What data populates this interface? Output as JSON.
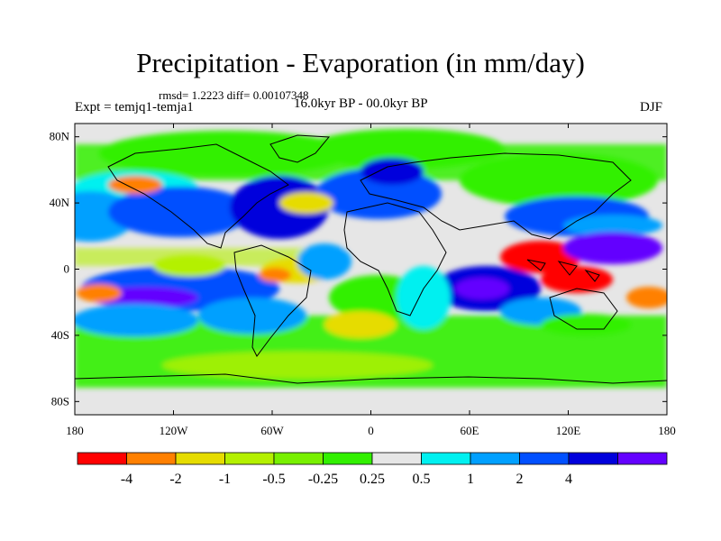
{
  "title": "Precipitation - Evaporation (in mm/day)",
  "stats": "rmsd= 1.2223 diff= 0.00107348",
  "experiment": "Expt = temjq1-temja1",
  "period": "16.0kyr BP - 00.0kyr BP",
  "season": "DJF",
  "lat_ticks": [
    {
      "label": "80N",
      "lat": 80
    },
    {
      "label": "40N",
      "lat": 40
    },
    {
      "label": "0",
      "lat": 0
    },
    {
      "label": "40S",
      "lat": -40
    },
    {
      "label": "80S",
      "lat": -80
    }
  ],
  "lon_ticks": [
    {
      "label": "180",
      "lon": -180
    },
    {
      "label": "120W",
      "lon": -120
    },
    {
      "label": "60W",
      "lon": -60
    },
    {
      "label": "0",
      "lon": 0
    },
    {
      "label": "60E",
      "lon": 60
    },
    {
      "label": "120E",
      "lon": 120
    },
    {
      "label": "180",
      "lon": 180
    }
  ],
  "colorbar": {
    "colors": [
      "#ff0000",
      "#ff8000",
      "#e6dc00",
      "#b4f000",
      "#78f000",
      "#32f000",
      "#e6e6e6",
      "#00f0f0",
      "#00a0ff",
      "#0050ff",
      "#0000dc",
      "#6400ff"
    ],
    "labels": [
      {
        "text": "-4",
        "boundary": 1
      },
      {
        "text": "-2",
        "boundary": 2
      },
      {
        "text": "-1",
        "boundary": 3
      },
      {
        "text": "-0.5",
        "boundary": 4
      },
      {
        "text": "-0.25",
        "boundary": 5
      },
      {
        "text": "0.25",
        "boundary": 6
      },
      {
        "text": "0.5",
        "boundary": 7
      },
      {
        "text": "1",
        "boundary": 8
      },
      {
        "text": "2",
        "boundary": 9
      },
      {
        "text": "4",
        "boundary": 10
      }
    ]
  },
  "colors": {
    "land_mask_missing": "#e6e6e6",
    "coastline": "#000000"
  }
}
